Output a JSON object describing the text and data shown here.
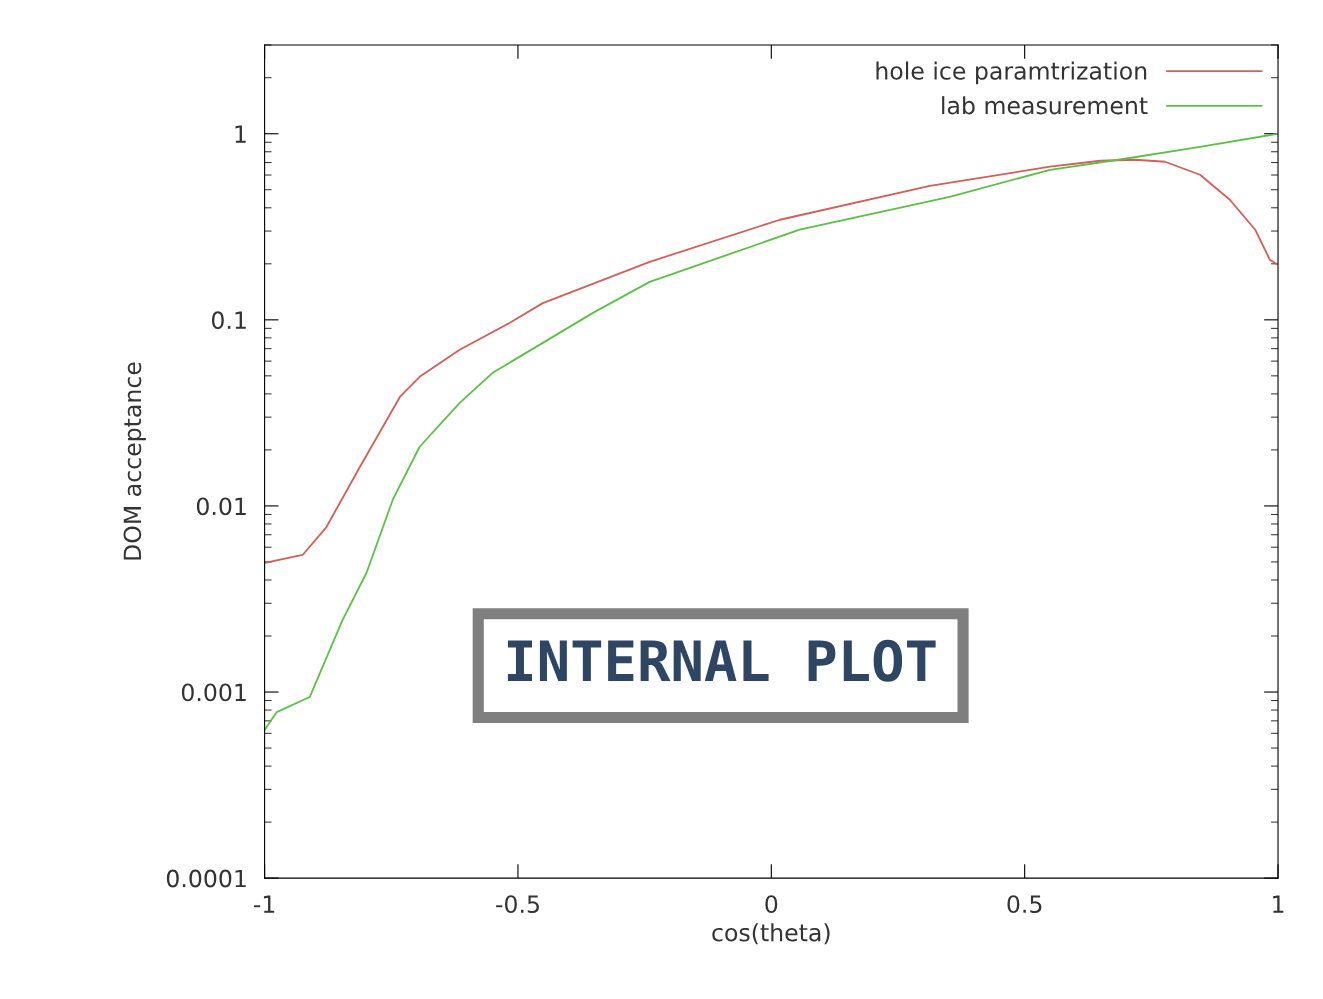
{
  "chart_data": {
    "type": "line",
    "xlabel": "cos(theta)",
    "ylabel": "DOM acceptance",
    "xlim": [
      -1,
      1
    ],
    "xticks": [
      -1,
      -0.5,
      0,
      0.5,
      1
    ],
    "ylim": [
      0.0001,
      3
    ],
    "yticks": [
      0.0001,
      0.001,
      0.01,
      0.1,
      1
    ],
    "log": "y",
    "grid": false,
    "legend": "top right",
    "annotations": [
      "INTERNAL PLOT"
    ],
    "series": [
      {
        "name": "hole ice paramtrization",
        "color": "#d0605a",
        "x": [
          -1,
          -0.925,
          -0.878,
          -0.812,
          -0.733,
          -0.694,
          -0.615,
          -0.516,
          -0.451,
          -0.24,
          0.017,
          0.313,
          0.55,
          0.649,
          0.718,
          0.777,
          0.846,
          0.905,
          0.955,
          0.984,
          1.0
        ],
        "values": [
          0.00494,
          0.00545,
          0.0077,
          0.0162,
          0.0385,
          0.0494,
          0.069,
          0.0964,
          0.123,
          0.205,
          0.345,
          0.525,
          0.665,
          0.716,
          0.725,
          0.707,
          0.602,
          0.442,
          0.305,
          0.21,
          0.198
        ]
      },
      {
        "name": "lab measurement",
        "color": "#5cc048",
        "x": [
          -1,
          -0.976,
          -0.911,
          -0.846,
          -0.799,
          -0.747,
          -0.694,
          -0.615,
          -0.55,
          -0.451,
          -0.352,
          -0.24,
          0.056,
          0.352,
          0.55,
          0.698,
          0.846,
          1.0
        ],
        "values": [
          0.000625,
          0.00078,
          0.00094,
          0.00244,
          0.00436,
          0.0108,
          0.0208,
          0.0358,
          0.0519,
          0.0752,
          0.109,
          0.16,
          0.305,
          0.458,
          0.64,
          0.734,
          0.851,
          1.0
        ]
      }
    ]
  }
}
